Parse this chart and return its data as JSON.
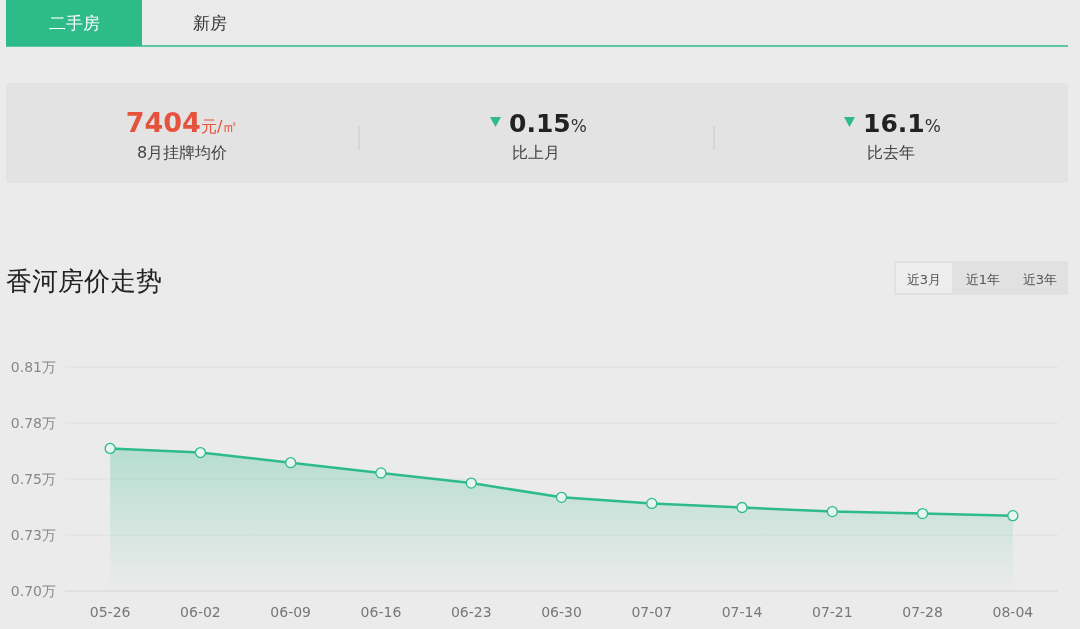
{
  "chart_data": {
    "type": "area",
    "title": "香河房价走势",
    "annotations": [
      "二手房",
      "新房",
      "**7404**元/㎡",
      "8月挂牌均价",
      "**0.15**%",
      "比上月",
      "**16.1**%",
      "比去年",
      "近3月",
      "近1年",
      "近3年"
    ],
    "categories": [
      "05-26",
      "06-02",
      "06-09",
      "06-16",
      "06-23",
      "06-30",
      "07-07",
      "07-14",
      "07-21",
      "07-28",
      "08-04"
    ],
    "values": [
      0.77,
      0.768,
      0.763,
      0.758,
      0.753,
      0.746,
      0.743,
      0.741,
      0.739,
      0.738,
      0.737
    ],
    "color": "#2dbb8a",
    "ylim": [
      0.7,
      0.81
    ],
    "yticks": [
      {
        "value": 0.7,
        "label": "0.70万"
      },
      {
        "value": 0.7275,
        "label": "0.73万"
      },
      {
        "value": 0.755,
        "label": "0.75万"
      },
      {
        "value": 0.7825,
        "label": "0.78万"
      },
      {
        "value": 0.81,
        "label": "0.81万"
      }
    ],
    "grid": "y",
    "marker": "circle",
    "line_style": "solid"
  }
}
